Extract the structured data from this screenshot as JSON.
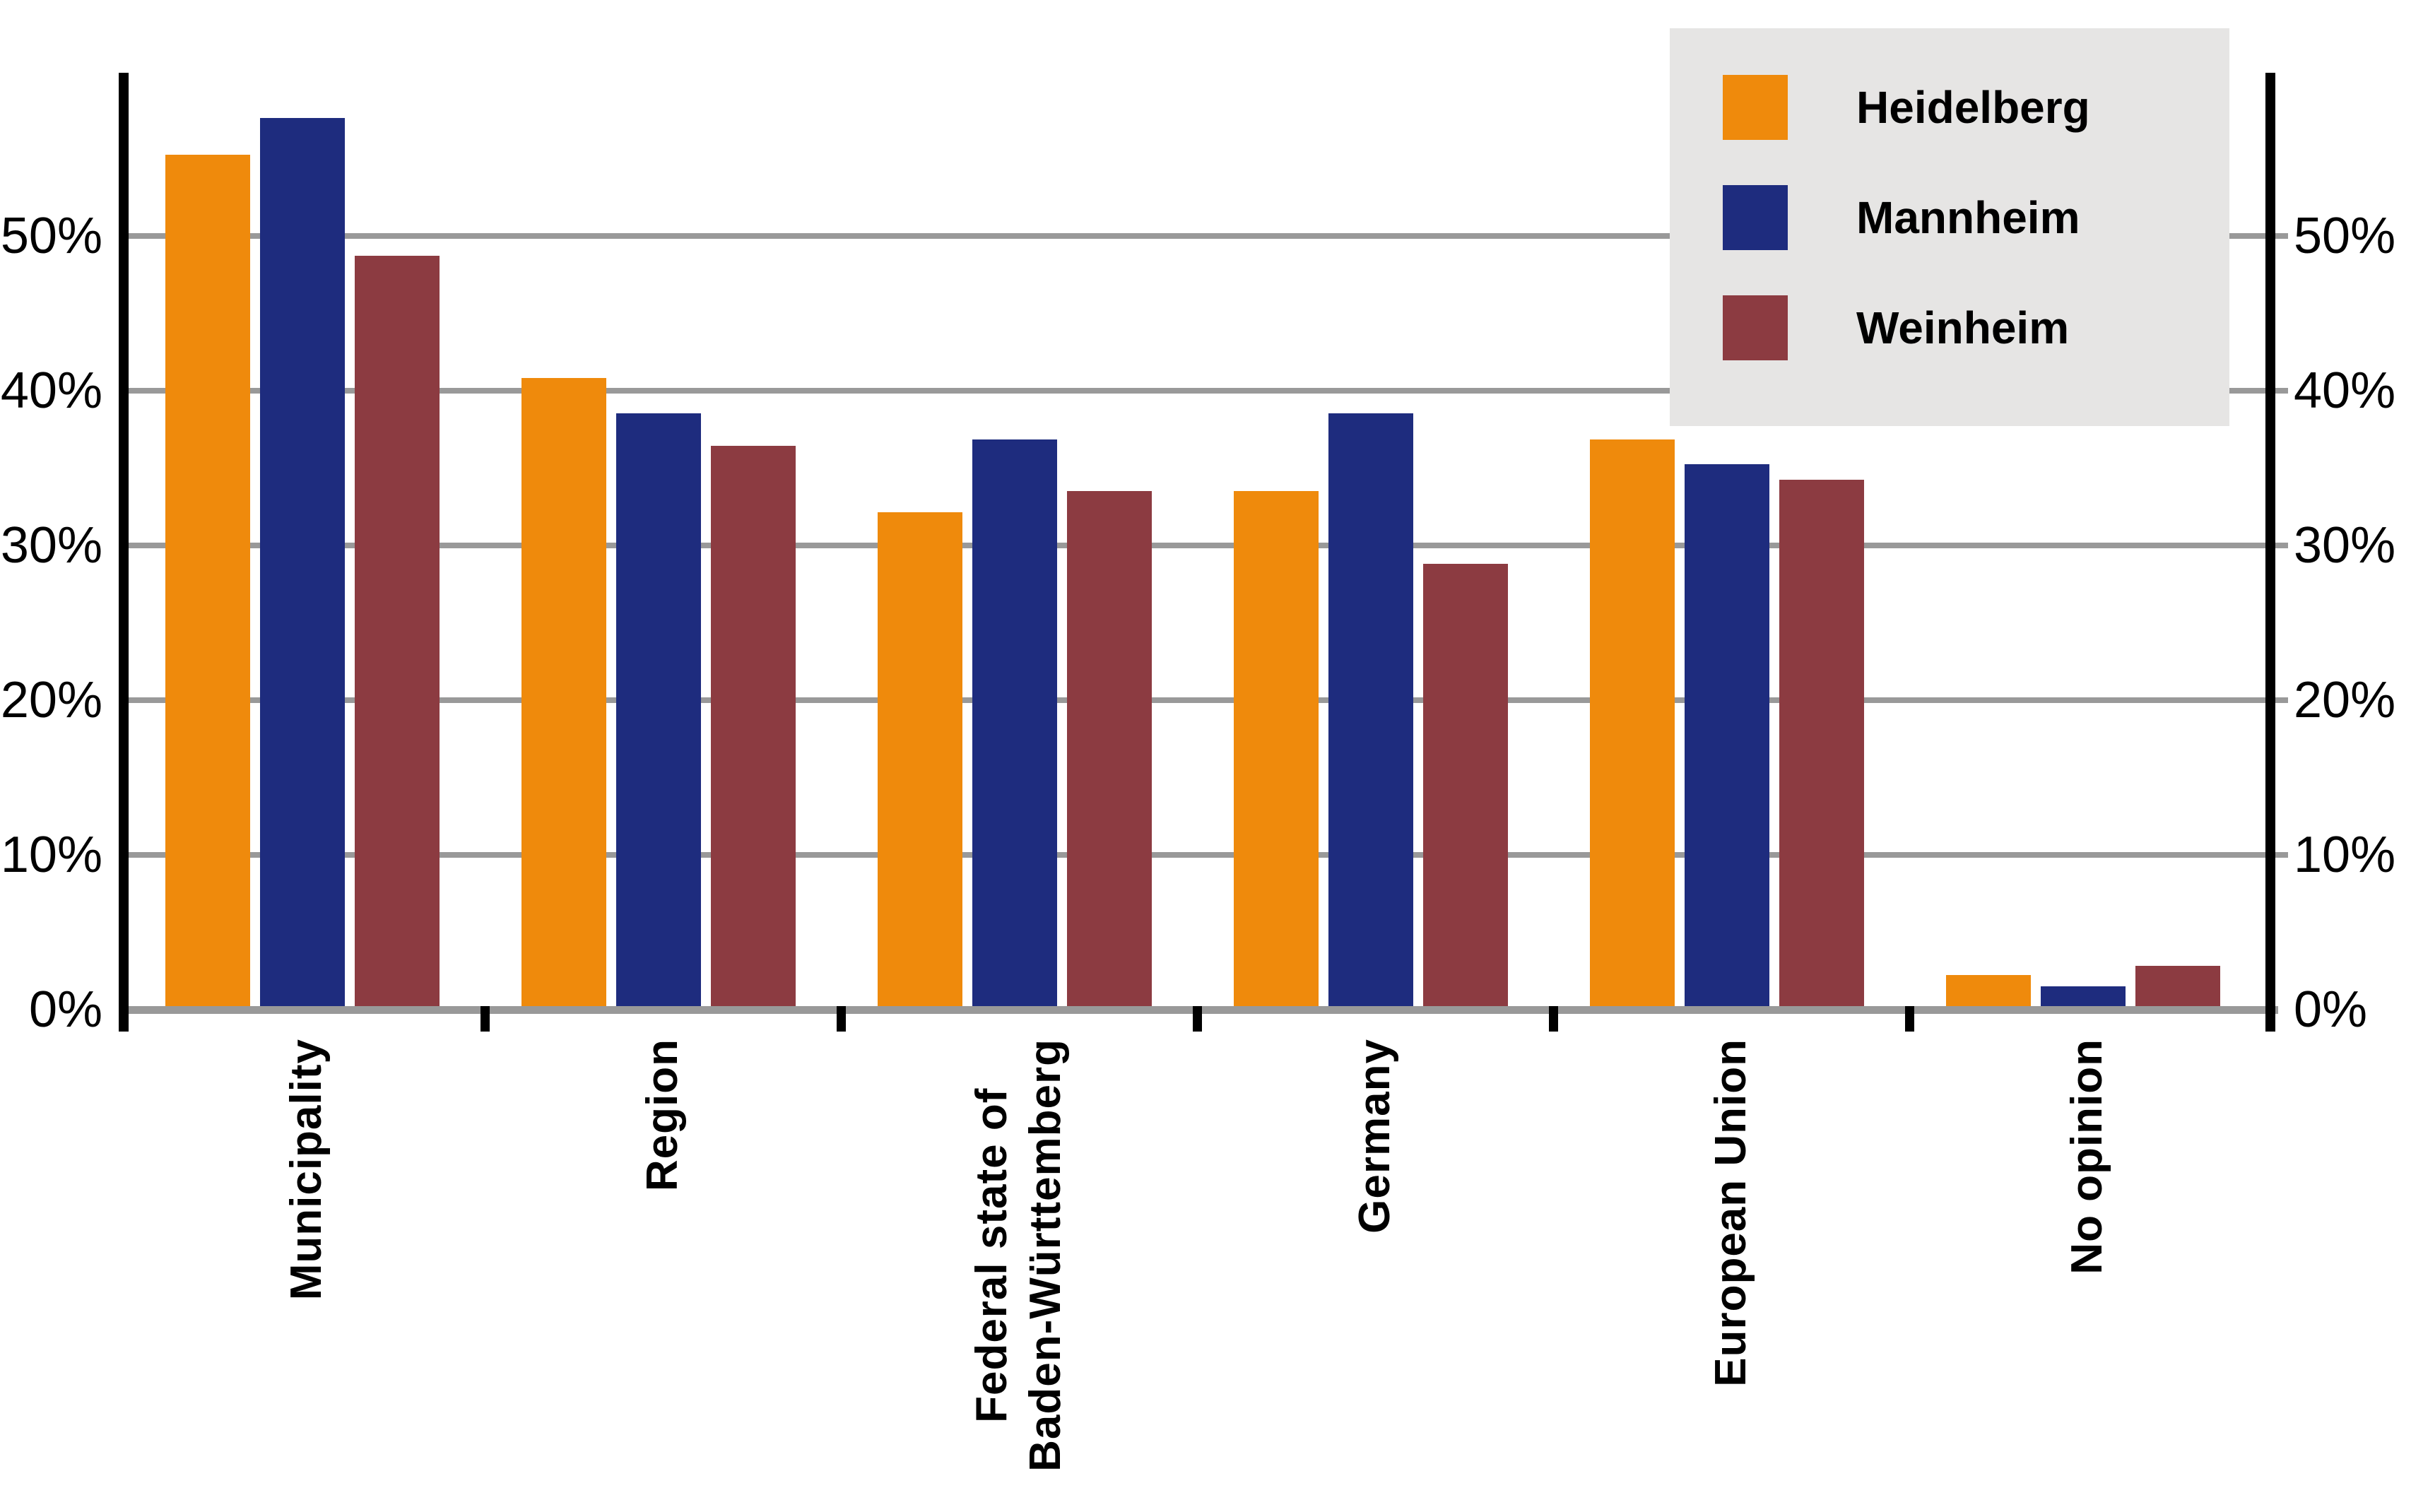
{
  "chart_data": {
    "type": "bar",
    "title": "",
    "xlabel": "",
    "ylabel": "",
    "categories": [
      "Municipality",
      "Region",
      "Federal state of Baden-Württemberg",
      "Germany",
      "European Union",
      "No opinion"
    ],
    "category_label_lines": [
      [
        "Municipality"
      ],
      [
        "Region"
      ],
      [
        "Federal state of",
        "Baden-Württemberg"
      ],
      [
        "Germany"
      ],
      [
        "European Union"
      ],
      [
        "No opinion"
      ]
    ],
    "series": [
      {
        "name": "Heidelberg",
        "color": "#EF8A0C",
        "values": [
          55.0,
          40.6,
          31.9,
          33.3,
          36.6,
          2.0
        ]
      },
      {
        "name": "Mannheim",
        "color": "#1E2C7E",
        "values": [
          57.4,
          38.3,
          36.6,
          38.3,
          35.0,
          1.3
        ]
      },
      {
        "name": "Weinheim",
        "color": "#8C3B41",
        "values": [
          48.5,
          36.2,
          33.3,
          28.6,
          34.0,
          2.6
        ]
      }
    ],
    "y_axis": {
      "unit": "%",
      "tick_values": [
        0,
        10,
        20,
        30,
        40,
        50
      ],
      "tick_labels": [
        "0%",
        "10%",
        "20%",
        "30%",
        "40%",
        "50%"
      ],
      "max": 60,
      "labels_on_both_sides": true,
      "grid": true
    },
    "legend": {
      "position": "top-right",
      "entries": [
        "Heidelberg",
        "Mannheim",
        "Weinheim"
      ]
    }
  },
  "colors": {
    "background": "#FFFFFF",
    "axis": "#000000",
    "gridline": "#999999",
    "baseline": "#999999",
    "legend_background": "#E6E5E4",
    "text": "#000000"
  }
}
